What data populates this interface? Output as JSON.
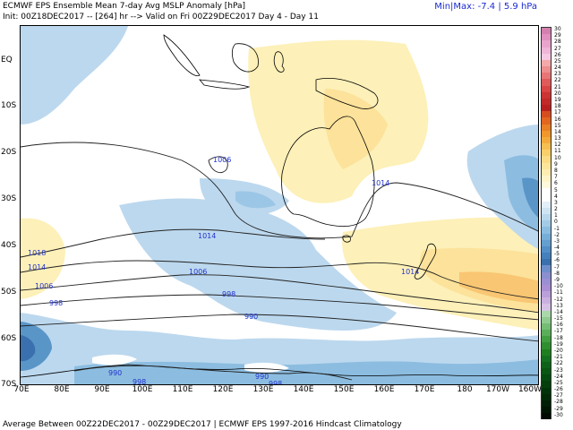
{
  "header": {
    "title": "ECMWF EPS Ensemble Mean 7-day Avg MSLP Anomaly [hPa]",
    "init_line": "Init: 00Z18DEC2017 -- [264] hr --> Valid on Fri 00Z29DEC2017   Day 4 - Day 11",
    "minmax": "Min|Max: -7.4 | 5.9 hPa"
  },
  "footer": "Average Between 00Z22DEC2017 - 00Z29DEC2017 | ECMWF EPS 1997-2016 Hindcast Climatology",
  "axes": {
    "lat_labels": [
      "EQ",
      "10S",
      "20S",
      "30S",
      "40S",
      "50S",
      "60S",
      "70S"
    ],
    "lon_labels": [
      "70E",
      "80E",
      "90E",
      "100E",
      "110E",
      "120E",
      "130E",
      "140E",
      "150E",
      "160E",
      "170E",
      "180",
      "170W",
      "160W"
    ]
  },
  "contours": {
    "labels": [
      "1006",
      "1014",
      "1018",
      "1014",
      "1006",
      "998",
      "1006",
      "998",
      "990",
      "1014",
      "990",
      "998",
      "990",
      "998"
    ]
  },
  "colorbar": {
    "labels": [
      "30",
      "29",
      "28",
      "27",
      "26",
      "25",
      "24",
      "23",
      "22",
      "21",
      "20",
      "19",
      "18",
      "17",
      "16",
      "15",
      "14",
      "13",
      "12",
      "11",
      "10",
      "9",
      "8",
      "7",
      "6",
      "5",
      "4",
      "3",
      "2",
      "1",
      "0",
      "-1",
      "-2",
      "-3",
      "-4",
      "-5",
      "-6",
      "-7",
      "-8",
      "-9",
      "-10",
      "-11",
      "-12",
      "-13",
      "-14",
      "-15",
      "-16",
      "-17",
      "-18",
      "-19",
      "-20",
      "-21",
      "-22",
      "-23",
      "-24",
      "-25",
      "-26",
      "-27",
      "-28",
      "-29",
      "-30"
    ],
    "colors": [
      "#d47fb0",
      "#e08fc0",
      "#e9a3cc",
      "#f0b5d8",
      "#f6c8e2",
      "#f3a9a9",
      "#ee8e8e",
      "#e87575",
      "#e05a5a",
      "#d94545",
      "#cc3333",
      "#c22a2a",
      "#b82020",
      "#d64d1f",
      "#e2661f",
      "#ea7f24",
      "#f0962b",
      "#f4aa3a",
      "#f7be52",
      "#f9cf6a",
      "#fbdc85",
      "#fce59a",
      "#fdedb2",
      "#fef4c8",
      "#fff8dc",
      "#ffffff",
      "#ffffff",
      "#e3eff8",
      "#cfe4f2",
      "#b8d7ec",
      "#a3cbe6",
      "#8cbde0",
      "#77aed8",
      "#649fd0",
      "#528fc6",
      "#4480bb",
      "#3a70ad",
      "#6e8fcb",
      "#8a8fd0",
      "#9b8fd3",
      "#ab8fd4",
      "#bb9fda",
      "#c9b0e0",
      "#d6c1e6",
      "#a9d8a9",
      "#8fcb8f",
      "#74bd74",
      "#5aae5a",
      "#419f41",
      "#2f8f2f",
      "#1f7f1f",
      "#15701f",
      "#0e6319",
      "#0a5714",
      "#064b10",
      "#043f0c",
      "#023409",
      "#022a07",
      "#011f05",
      "#011503",
      "#010b02"
    ]
  }
}
